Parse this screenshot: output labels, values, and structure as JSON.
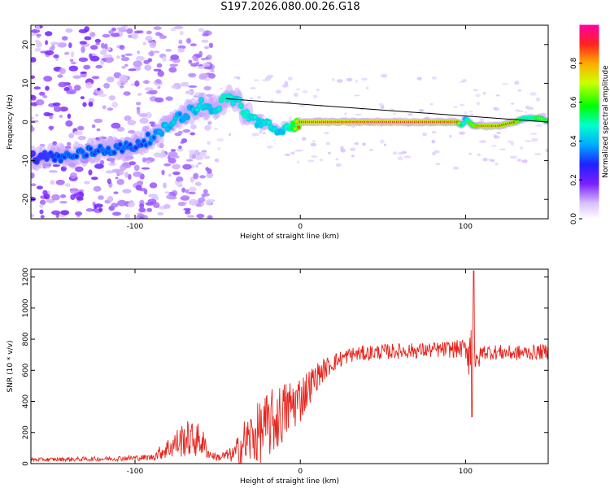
{
  "title": "S197.2026.080.00.26.G18",
  "colors": {
    "axis": "#000000",
    "snr_line": "#e8231c",
    "fit_line": "#000000"
  },
  "chart_data": [
    {
      "type": "heatmap",
      "name": "spectrogram",
      "title": "S197.2026.080.00.26.G18",
      "xlabel": "Height of straight line (km)",
      "ylabel": "Frequency (Hz)",
      "xlim": [
        -163,
        150
      ],
      "ylim": [
        -25,
        25
      ],
      "xticks": [
        -100,
        0,
        100
      ],
      "yticks": [
        -20,
        -10,
        0,
        10,
        20
      ],
      "colorbar": {
        "label": "Normalized spectral amplitude",
        "ticks": [
          "0.0",
          "0.2",
          "0.4",
          "0.6",
          "0.8"
        ],
        "tick_values": [
          0.0,
          0.2,
          0.4,
          0.6,
          0.8
        ],
        "range": [
          0,
          1
        ]
      },
      "ridge_x": [
        -163,
        -150,
        -140,
        -130,
        -120,
        -110,
        -100,
        -95,
        -90,
        -85,
        -80,
        -75,
        -70,
        -65,
        -60,
        -55,
        -50,
        -45,
        -40,
        -37,
        -35,
        -32,
        -30,
        -25,
        -20,
        -15,
        -12,
        -10,
        -5,
        0,
        5,
        20,
        40,
        60,
        80,
        95,
        98,
        100,
        102,
        105,
        110,
        120,
        130,
        135,
        140,
        145,
        150
      ],
      "ridge_y": [
        -9,
        -9,
        -9,
        -8,
        -7,
        -7,
        -6,
        -5,
        -4,
        -3,
        -1,
        1,
        2,
        3,
        5,
        3,
        4,
        6,
        6,
        5,
        3,
        2,
        1,
        0,
        -1,
        -2,
        -3,
        -2,
        -1,
        0,
        0,
        0,
        0,
        0,
        0,
        0,
        -1,
        1,
        0,
        -1,
        -1,
        -1,
        0,
        1,
        1,
        1,
        0
      ],
      "ridge_amplitude": [
        0.2,
        0.25,
        0.3,
        0.3,
        0.3,
        0.3,
        0.3,
        0.3,
        0.35,
        0.35,
        0.4,
        0.4,
        0.35,
        0.4,
        0.45,
        0.4,
        0.45,
        0.5,
        0.45,
        0.45,
        0.5,
        0.5,
        0.45,
        0.45,
        0.45,
        0.45,
        0.4,
        0.45,
        0.6,
        0.9,
        0.95,
        0.95,
        0.95,
        0.95,
        0.92,
        0.9,
        0.5,
        0.4,
        0.6,
        0.75,
        0.9,
        0.9,
        0.88,
        0.55,
        0.55,
        0.7,
        0.6
      ],
      "fit_line": {
        "x": [
          -45,
          150
        ],
        "y": [
          6,
          0
        ]
      }
    },
    {
      "type": "line",
      "name": "snr",
      "xlabel": "Height of straight line (km)",
      "ylabel": "SNR (10 * v/v)",
      "xlim": [
        -163,
        150
      ],
      "ylim": [
        0,
        1250
      ],
      "xticks": [
        -100,
        0,
        100
      ],
      "yticks": [
        0,
        200,
        400,
        600,
        800,
        1000,
        1200
      ],
      "trend_x": [
        -163,
        -120,
        -90,
        -80,
        -70,
        -60,
        -55,
        -50,
        -40,
        -35,
        -30,
        -25,
        -20,
        -15,
        -10,
        -5,
        0,
        5,
        10,
        15,
        20,
        30,
        50,
        80,
        100,
        104,
        105,
        106,
        110,
        130,
        150
      ],
      "trend_y": [
        25,
        30,
        40,
        100,
        160,
        150,
        60,
        40,
        60,
        120,
        160,
        200,
        240,
        280,
        330,
        380,
        420,
        490,
        560,
        610,
        650,
        700,
        720,
        730,
        740,
        720,
        900,
        620,
        720,
        710,
        720
      ],
      "noise_y": [
        12,
        15,
        20,
        70,
        120,
        110,
        30,
        25,
        55,
        160,
        180,
        200,
        220,
        220,
        200,
        180,
        160,
        120,
        90,
        70,
        60,
        50,
        50,
        50,
        60,
        300,
        300,
        80,
        50,
        50,
        50
      ]
    }
  ]
}
